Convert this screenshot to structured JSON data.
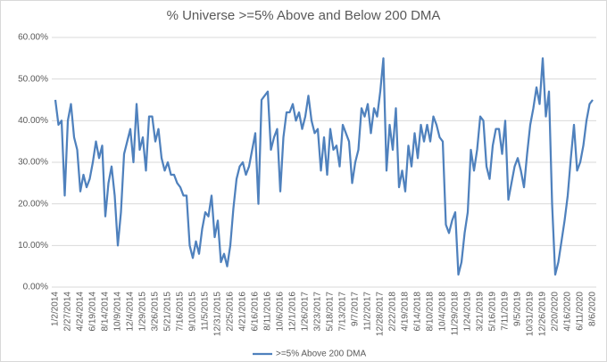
{
  "chart_data": {
    "type": "line",
    "title": "% Universe >=5% Above and Below 200 DMA",
    "categories": [
      "1/2/2014",
      null,
      null,
      null,
      "2/27/2014",
      null,
      null,
      null,
      "4/24/2014",
      null,
      null,
      null,
      "6/19/2014",
      null,
      null,
      null,
      "8/14/2014",
      null,
      null,
      null,
      "10/9/2014",
      null,
      null,
      null,
      "12/4/2014",
      null,
      null,
      null,
      "1/29/2015",
      null,
      null,
      null,
      "3/26/2015",
      null,
      null,
      null,
      "5/21/2015",
      null,
      null,
      null,
      "7/16/2015",
      null,
      null,
      null,
      "9/10/2015",
      null,
      null,
      null,
      "11/5/2015",
      null,
      null,
      null,
      "12/31/2015",
      null,
      null,
      null,
      "2/25/2016",
      null,
      null,
      null,
      "4/21/2016",
      null,
      null,
      null,
      "6/16/2016",
      null,
      null,
      null,
      "8/11/2016",
      null,
      null,
      null,
      "10/6/2016",
      null,
      null,
      null,
      "12/1/2016",
      null,
      null,
      null,
      "1/26/2017",
      null,
      null,
      null,
      "3/23/2017",
      null,
      null,
      null,
      "5/18/2017",
      null,
      null,
      null,
      "7/13/2017",
      null,
      null,
      null,
      "9/7/2017",
      null,
      null,
      null,
      "11/2/2017",
      null,
      null,
      null,
      "12/28/2017",
      null,
      null,
      null,
      "2/22/2018",
      null,
      null,
      null,
      "4/19/2018",
      null,
      null,
      null,
      "6/14/2018",
      null,
      null,
      null,
      "8/10/2018",
      null,
      null,
      null,
      "10/4/2018",
      null,
      null,
      null,
      "11/29/2018",
      null,
      null,
      null,
      "1/24/2019",
      null,
      null,
      null,
      "3/21/2019",
      null,
      null,
      null,
      "5/16/2019",
      null,
      null,
      null,
      "7/11/2019",
      null,
      null,
      null,
      "9/5/2019",
      null,
      null,
      null,
      "10/31/2019",
      null,
      null,
      null,
      "12/26/2019",
      null,
      null,
      null,
      "2/20/2020",
      null,
      null,
      null,
      "4/16/2020",
      null,
      null,
      null,
      "6/11/2020",
      null,
      null,
      null,
      "8/6/2020"
    ],
    "series": [
      {
        "name": ">=5% Above 200 DMA",
        "color": "#4f81bd",
        "values": [
          45,
          39,
          40,
          22,
          40,
          44,
          36,
          33,
          23,
          27,
          24,
          26,
          30,
          35,
          31,
          34,
          17,
          25,
          29,
          22,
          10,
          18,
          32,
          35,
          38,
          30,
          44,
          33,
          36,
          28,
          41,
          41,
          35,
          38,
          31,
          28,
          30,
          27,
          27,
          25,
          24,
          22,
          22,
          10,
          7,
          11,
          8,
          14,
          18,
          17,
          22,
          12,
          16,
          6,
          8,
          5,
          10,
          19,
          26,
          29,
          30,
          27,
          29,
          33,
          37,
          20,
          45,
          46,
          47,
          33,
          36,
          38,
          23,
          36,
          42,
          42,
          44,
          40,
          42,
          38,
          41,
          46,
          40,
          37,
          38,
          28,
          36,
          27,
          38,
          33,
          34,
          29,
          39,
          37,
          35,
          25,
          30,
          33,
          43,
          41,
          44,
          37,
          43,
          41,
          47,
          55,
          28,
          39,
          33,
          43,
          24,
          28,
          23,
          34,
          29,
          37,
          31,
          39,
          35,
          39,
          35,
          41,
          39,
          36,
          35,
          15,
          13,
          16,
          18,
          3,
          6,
          13,
          18,
          33,
          28,
          33,
          41,
          40,
          29,
          26,
          34,
          38,
          38,
          32,
          40,
          21,
          25,
          29,
          31,
          28,
          24,
          32,
          39,
          43,
          48,
          44,
          55,
          41,
          47,
          20,
          3,
          6,
          11,
          16,
          22,
          31,
          39,
          28,
          30,
          34,
          40,
          44,
          45
        ]
      }
    ],
    "ylim": [
      0,
      60
    ],
    "yticks": [
      {
        "value": 0,
        "label": "0.00%"
      },
      {
        "value": 10,
        "label": "10.00%"
      },
      {
        "value": 20,
        "label": "20.00%"
      },
      {
        "value": 30,
        "label": "30.00%"
      },
      {
        "value": 40,
        "label": "40.00%"
      },
      {
        "value": 50,
        "label": "50.00%"
      },
      {
        "value": 60,
        "label": "60.00%"
      }
    ],
    "grid": true,
    "legend": "bottom"
  }
}
